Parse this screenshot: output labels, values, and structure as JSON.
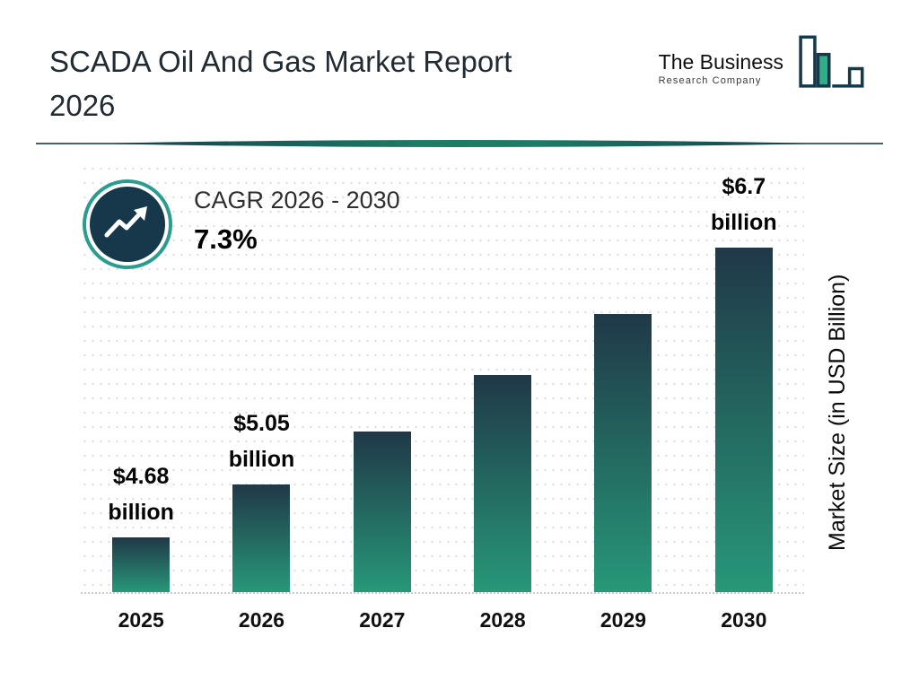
{
  "header": {
    "title_line1": "SCADA Oil And Gas Market Report",
    "title_line2": "2026"
  },
  "logo": {
    "name_top": "The Business",
    "name_bottom": "Research Company"
  },
  "cagr": {
    "label": "CAGR 2026 - 2030",
    "value": "7.3%"
  },
  "chart_data": {
    "type": "bar",
    "title": "SCADA Oil And Gas Market Report 2026",
    "categories": [
      "2025",
      "2026",
      "2027",
      "2028",
      "2029",
      "2030"
    ],
    "values": [
      4.68,
      5.05,
      5.42,
      5.81,
      6.24,
      6.7
    ],
    "value_labels": [
      {
        "amount": "$4.68",
        "unit": "billion"
      },
      {
        "amount": "$5.05",
        "unit": "billion"
      },
      null,
      null,
      null,
      {
        "amount": "$6.7",
        "unit": "billion"
      }
    ],
    "xlabel": "",
    "ylabel": "Market Size (in USD Billion)",
    "ylim": [
      4.3,
      7.3
    ],
    "grid": "dotted-horizontal",
    "legend": "none",
    "colors": {
      "bar_gradient_top": "#203848",
      "bar_gradient_bottom": "#279878",
      "accent_teal": "#2a9d8f",
      "navy": "#16394a"
    }
  }
}
